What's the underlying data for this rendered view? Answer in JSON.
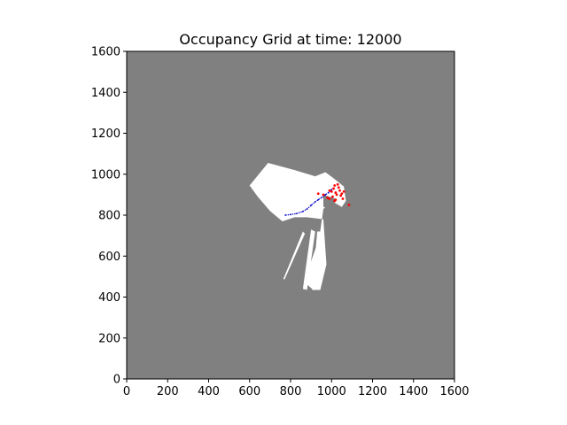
{
  "chart_data": {
    "type": "heatmap",
    "title": "Occupancy Grid at time: 12000",
    "xlabel": "",
    "ylabel": "",
    "xlim": [
      0,
      1600
    ],
    "ylim": [
      0,
      1600
    ],
    "x_ticks": [
      0,
      200,
      400,
      600,
      800,
      1000,
      1200,
      1400,
      1600
    ],
    "y_ticks": [
      0,
      200,
      400,
      600,
      800,
      1000,
      1200,
      1400,
      1600
    ],
    "grid": false,
    "colors": {
      "unknown": "#808080",
      "free": "#ffffff",
      "trajectory": "#0000cc",
      "detections": "#ff0000"
    },
    "free_regions": [
      {
        "name": "main-free-area",
        "polygon": [
          [
            600,
            945
          ],
          [
            690,
            1055
          ],
          [
            820,
            1020
          ],
          [
            920,
            990
          ],
          [
            970,
            1010
          ],
          [
            1010,
            980
          ],
          [
            1060,
            940
          ],
          [
            1070,
            870
          ],
          [
            1050,
            840
          ],
          [
            1000,
            870
          ],
          [
            960,
            830
          ],
          [
            940,
            690
          ],
          [
            895,
            560
          ],
          [
            865,
            475
          ],
          [
            910,
            435
          ],
          [
            945,
            435
          ],
          [
            975,
            560
          ],
          [
            960,
            780
          ],
          [
            880,
            790
          ],
          [
            820,
            790
          ],
          [
            760,
            770
          ],
          [
            700,
            820
          ],
          [
            640,
            890
          ],
          [
            600,
            945
          ]
        ]
      },
      {
        "name": "scan-ray-1",
        "polygon": [
          [
            860,
            720
          ],
          [
            765,
            490
          ],
          [
            770,
            485
          ],
          [
            870,
            710
          ]
        ]
      },
      {
        "name": "scan-ray-2",
        "polygon": [
          [
            900,
            730
          ],
          [
            860,
            440
          ],
          [
            880,
            435
          ],
          [
            920,
            720
          ]
        ]
      },
      {
        "name": "scan-ray-3",
        "polygon": [
          [
            930,
            720
          ],
          [
            905,
            435
          ],
          [
            945,
            435
          ],
          [
            950,
            720
          ]
        ]
      }
    ],
    "occupied_gaps": [
      {
        "name": "inner-unknown-notch",
        "polygon": [
          [
            960,
            840
          ],
          [
            1010,
            835
          ],
          [
            1020,
            880
          ],
          [
            960,
            900
          ]
        ]
      }
    ],
    "trajectory": [
      [
        775,
        800
      ],
      [
        800,
        803
      ],
      [
        830,
        808
      ],
      [
        860,
        818
      ],
      [
        880,
        830
      ],
      [
        900,
        848
      ],
      [
        920,
        865
      ],
      [
        935,
        875
      ],
      [
        950,
        885
      ],
      [
        970,
        900
      ],
      [
        985,
        910
      ],
      [
        1000,
        925
      ]
    ],
    "detections": [
      [
        935,
        905
      ],
      [
        960,
        900
      ],
      [
        980,
        885
      ],
      [
        990,
        920
      ],
      [
        1000,
        915
      ],
      [
        1005,
        890
      ],
      [
        1010,
        930
      ],
      [
        1015,
        945
      ],
      [
        1020,
        910
      ],
      [
        1025,
        900
      ],
      [
        1030,
        950
      ],
      [
        1035,
        935
      ],
      [
        1040,
        920
      ],
      [
        1045,
        895
      ],
      [
        1050,
        905
      ],
      [
        1060,
        915
      ],
      [
        1055,
        880
      ],
      [
        1020,
        875
      ],
      [
        1085,
        850
      ],
      [
        990,
        880
      ],
      [
        1015,
        870
      ]
    ]
  }
}
